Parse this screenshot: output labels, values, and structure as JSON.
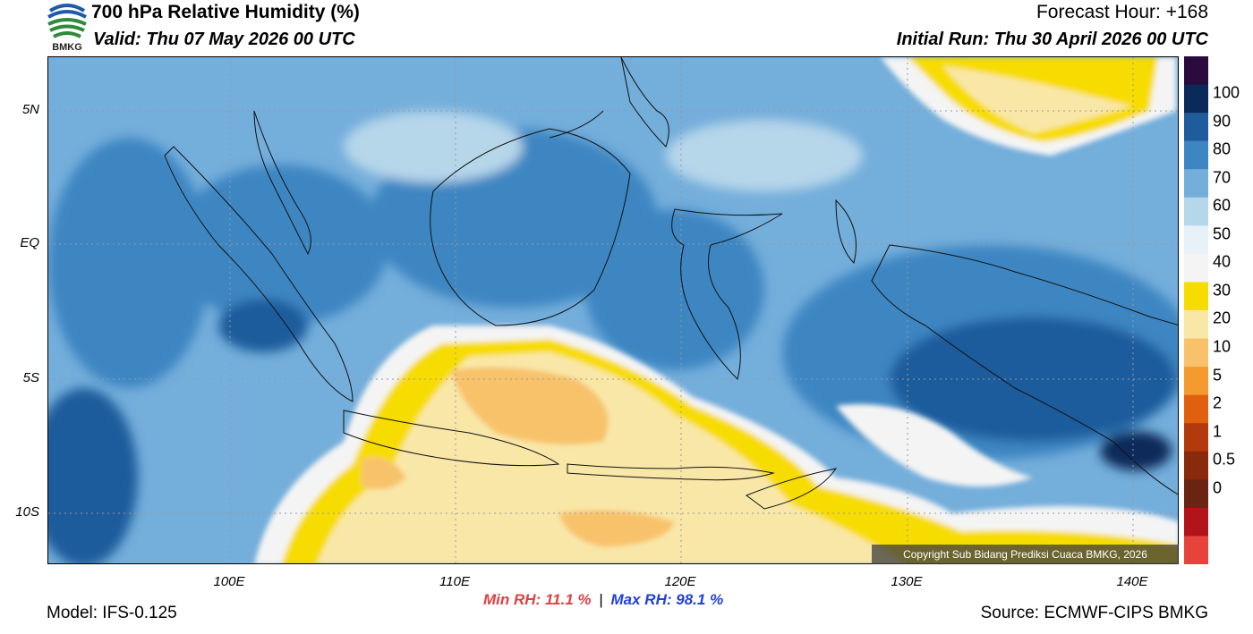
{
  "header": {
    "title": "700 hPa Relative Humidity (%)",
    "valid": "Valid: Thu 07 May 2026 00 UTC",
    "forecast_hour": "Forecast Hour: +168",
    "initial_run": "Initial Run: Thu 30 April 2026 00 UTC"
  },
  "logo": {
    "text": "BMKG"
  },
  "map": {
    "lat_labels": [
      "5N",
      "EQ",
      "5S",
      "10S"
    ],
    "lon_labels": [
      "100E",
      "110E",
      "120E",
      "130E",
      "140E"
    ],
    "copyright": "Copyright Sub Bidang Prediksi Cuaca BMKG, 2026"
  },
  "colorbar": {
    "labels": [
      "100",
      "90",
      "80",
      "70",
      "60",
      "50",
      "40",
      "30",
      "20",
      "10",
      "5",
      "2",
      "1",
      "0.5",
      "0"
    ],
    "colors": [
      "#2b0a3d",
      "#0a2a5a",
      "#1f5c9c",
      "#3d86c2",
      "#74aedb",
      "#b6d6ea",
      "#e8f1f7",
      "#f4f4f4",
      "#f7dc00",
      "#f9e7a8",
      "#f7c26a",
      "#f49a2f",
      "#e06010",
      "#b33a0c",
      "#8a2a0c",
      "#6a2412",
      "#b3141a",
      "#e8433a"
    ]
  },
  "footer": {
    "model": "Model: IFS-0.125",
    "min_label": "Min RH:",
    "min_value": "11.1 %",
    "separator": "|",
    "max_label": "Max RH:",
    "max_value": "98.1 %",
    "source": "Source: ECMWF-CIPS BMKG"
  }
}
